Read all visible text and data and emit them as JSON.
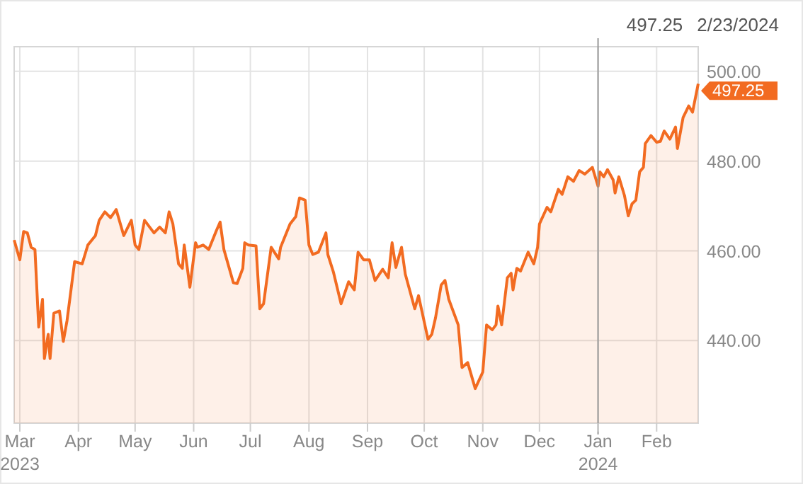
{
  "chart_data": {
    "type": "area",
    "x": [
      "2023-02-26",
      "2023-03-01",
      "2023-03-03",
      "2023-03-05",
      "2023-03-07",
      "2023-03-09",
      "2023-03-11",
      "2023-03-13",
      "2023-03-14",
      "2023-03-16",
      "2023-03-17",
      "2023-03-19",
      "2023-03-22",
      "2023-03-24",
      "2023-03-26",
      "2023-03-30",
      "2023-04-03",
      "2023-04-06",
      "2023-04-10",
      "2023-04-12",
      "2023-04-15",
      "2023-04-18",
      "2023-04-21",
      "2023-04-25",
      "2023-04-29",
      "2023-05-01",
      "2023-05-03",
      "2023-05-06",
      "2023-05-11",
      "2023-05-14",
      "2023-05-17",
      "2023-05-19",
      "2023-05-21",
      "2023-05-24",
      "2023-05-26",
      "2023-05-27",
      "2023-05-30",
      "2023-06-02",
      "2023-06-03",
      "2023-06-06",
      "2023-06-09",
      "2023-06-13",
      "2023-06-15",
      "2023-06-17",
      "2023-06-22",
      "2023-06-24",
      "2023-06-27",
      "2023-06-28",
      "2023-06-30",
      "2023-07-04",
      "2023-07-06",
      "2023-07-08",
      "2023-07-12",
      "2023-07-16",
      "2023-07-17",
      "2023-07-22",
      "2023-07-25",
      "2023-07-27",
      "2023-07-30",
      "2023-08-01",
      "2023-08-03",
      "2023-08-06",
      "2023-08-10",
      "2023-08-11",
      "2023-08-14",
      "2023-08-18",
      "2023-08-22",
      "2023-08-25",
      "2023-08-27",
      "2023-08-30",
      "2023-09-02",
      "2023-09-05",
      "2023-09-09",
      "2023-09-12",
      "2023-09-14",
      "2023-09-16",
      "2023-09-19",
      "2023-09-21",
      "2023-09-26",
      "2023-09-28",
      "2023-10-03",
      "2023-10-05",
      "2023-10-07",
      "2023-10-10",
      "2023-10-12",
      "2023-10-14",
      "2023-10-19",
      "2023-10-21",
      "2023-10-24",
      "2023-10-28",
      "2023-11-01",
      "2023-11-03",
      "2023-11-06",
      "2023-11-08",
      "2023-11-09",
      "2023-11-11",
      "2023-11-14",
      "2023-11-16",
      "2023-11-17",
      "2023-11-19",
      "2023-11-21",
      "2023-11-25",
      "2023-11-28",
      "2023-11-30",
      "2023-12-01",
      "2023-12-05",
      "2023-12-07",
      "2023-12-11",
      "2023-12-13",
      "2023-12-16",
      "2023-12-19",
      "2023-12-22",
      "2023-12-25",
      "2023-12-29",
      "2024-01-01",
      "2024-01-02",
      "2024-01-04",
      "2024-01-06",
      "2024-01-09",
      "2024-01-10",
      "2024-01-12",
      "2024-01-15",
      "2024-01-17",
      "2024-01-19",
      "2024-01-21",
      "2024-01-23",
      "2024-01-25",
      "2024-01-26",
      "2024-01-29",
      "2024-02-01",
      "2024-02-03",
      "2024-02-05",
      "2024-02-08",
      "2024-02-11",
      "2024-02-12",
      "2024-02-15",
      "2024-02-18",
      "2024-02-20",
      "2024-02-23"
    ],
    "series": [
      {
        "color": "#f26b21",
        "values": [
          462.4,
          458,
          464.3,
          464,
          460.8,
          460.3,
          443,
          449.2,
          436,
          441.4,
          436,
          446.1,
          446.6,
          439.8,
          444.5,
          457.6,
          457.1,
          461.3,
          463.4,
          466.8,
          468.7,
          467.4,
          469.2,
          463.4,
          466.8,
          461.3,
          460.3,
          466.8,
          464,
          465.3,
          464,
          468.7,
          466,
          457.1,
          456.1,
          461.3,
          451.9,
          461.8,
          460.8,
          461.3,
          460.3,
          464.5,
          466.4,
          460.3,
          452.9,
          452.7,
          456.1,
          461.8,
          461.3,
          461.1,
          447.1,
          448.2,
          460.8,
          458.2,
          460.8,
          466,
          467.6,
          471.8,
          471.3,
          461.3,
          459.2,
          459.7,
          464,
          459.2,
          455.2,
          448.2,
          453.1,
          451.3,
          459.7,
          458,
          458,
          453.4,
          455.9,
          454,
          461.8,
          456.3,
          460.8,
          454.8,
          447.1,
          450,
          440.3,
          441.4,
          445.1,
          452.4,
          453.4,
          449.2,
          443.5,
          434,
          435.1,
          429.3,
          433,
          443.5,
          442.4,
          443.5,
          447.7,
          443.5,
          454,
          455,
          451.3,
          456.1,
          455.5,
          459.7,
          457.1,
          460.8,
          466,
          469.7,
          468.7,
          473.7,
          472.6,
          476.5,
          475.5,
          477.9,
          477.1,
          478.6,
          474.4,
          477.6,
          476.5,
          478.1,
          475.8,
          472.9,
          476.5,
          472.3,
          467.8,
          470.5,
          471.3,
          477.6,
          478.6,
          483.9,
          485.7,
          484.2,
          484.4,
          486.7,
          484.9,
          487.6,
          482.8,
          489.7,
          492.3,
          490.9,
          497.25
        ]
      }
    ],
    "xlim": [
      "2023-02-26",
      "2024-02-23"
    ],
    "xticks": [
      {
        "value": "2023-03-01",
        "label": "Mar 2023"
      },
      {
        "value": "2023-04-01",
        "label": "Apr"
      },
      {
        "value": "2023-05-01",
        "label": "May"
      },
      {
        "value": "2023-06-01",
        "label": "Jun"
      },
      {
        "value": "2023-07-01",
        "label": "Jul"
      },
      {
        "value": "2023-08-01",
        "label": "Aug"
      },
      {
        "value": "2023-09-01",
        "label": "Sep"
      },
      {
        "value": "2023-10-01",
        "label": "Oct"
      },
      {
        "value": "2023-11-01",
        "label": "Nov"
      },
      {
        "value": "2023-12-01",
        "label": "Dec"
      },
      {
        "value": "2024-01-01",
        "label": "Jan 2024"
      },
      {
        "value": "2024-02-01",
        "label": "Feb"
      }
    ],
    "ylim": [
      421.6,
      505.5
    ],
    "yticks": [
      {
        "value": 440,
        "label": "440.00"
      },
      {
        "value": 460,
        "label": "460.00"
      },
      {
        "value": 480,
        "label": "480.00"
      },
      {
        "value": 500,
        "label": "500.00"
      }
    ],
    "grid": true,
    "ref_lines": [
      {
        "axis": "x",
        "value": "2024-01-01",
        "label": null,
        "color": "#999999"
      }
    ],
    "annotations": [
      "497.25",
      "2/23/2024",
      "497.25"
    ]
  }
}
